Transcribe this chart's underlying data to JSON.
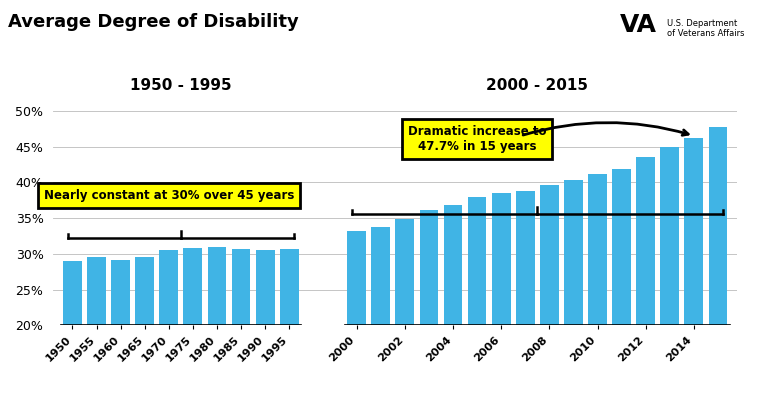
{
  "title": "Average Degree of Disability",
  "bar_color": "#40b4e5",
  "categories_1950": [
    "1950",
    "1955",
    "1960",
    "1965",
    "1970",
    "1975",
    "1980",
    "1985",
    "1990",
    "1995"
  ],
  "values_1950": [
    29.0,
    29.5,
    29.1,
    29.6,
    30.5,
    30.8,
    30.9,
    30.6,
    30.5,
    30.7
  ],
  "values_2000_all": [
    33.2,
    33.7,
    34.8,
    36.1,
    36.8,
    37.9,
    38.5,
    38.8,
    39.6,
    40.3,
    41.2,
    41.9,
    43.5,
    45.0,
    46.2,
    47.7
  ],
  "xticks_2000": [
    "2000",
    "2002",
    "2004",
    "2006",
    "2008",
    "2010",
    "2012",
    "2014"
  ],
  "ylim": [
    20,
    50
  ],
  "yticks": [
    20,
    25,
    30,
    35,
    40,
    45,
    50
  ],
  "label_1950_1995": "1950 - 1995",
  "label_2000_2015": "2000 - 2015",
  "annotation1": "Nearly constant at 30% over 45 years",
  "annotation2": "Dramatic increase to\n47.7% in 15 years"
}
